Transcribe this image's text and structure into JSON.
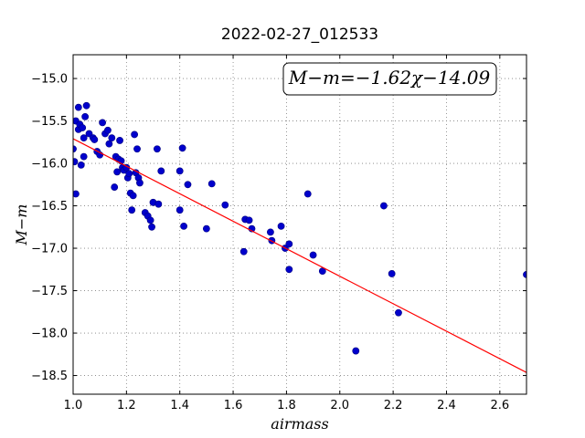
{
  "chart_data": {
    "type": "scatter",
    "title": "2022-02-27_012533",
    "xlabel": "airmass",
    "ylabel": "M−m",
    "xlim": [
      1.0,
      2.7
    ],
    "ylim": [
      -18.72,
      -14.72
    ],
    "xticks": [
      1.0,
      1.2,
      1.4,
      1.6,
      1.8,
      2.0,
      2.2,
      2.4,
      2.6
    ],
    "xtick_labels": [
      "1.0",
      "1.2",
      "1.4",
      "1.6",
      "1.8",
      "2.0",
      "2.2",
      "2.4",
      "2.6"
    ],
    "yticks": [
      -15.0,
      -15.5,
      -16.0,
      -16.5,
      -17.0,
      -17.5,
      -18.0,
      -18.5
    ],
    "ytick_labels": [
      "−15.0",
      "−15.5",
      "−16.0",
      "−16.5",
      "−17.0",
      "−17.5",
      "−18.0",
      "−18.5"
    ],
    "grid": true,
    "annotation": "M−m=−1.62χ−14.09",
    "marker_color": "#0000cc",
    "fit_color": "#ff0000",
    "fit": {
      "slope": -1.62,
      "intercept": -14.09
    },
    "points": [
      [
        1.0,
        -15.83
      ],
      [
        1.005,
        -15.98
      ],
      [
        1.01,
        -15.5
      ],
      [
        1.01,
        -16.36
      ],
      [
        1.02,
        -15.6
      ],
      [
        1.02,
        -15.34
      ],
      [
        1.025,
        -15.54
      ],
      [
        1.03,
        -16.02
      ],
      [
        1.035,
        -15.58
      ],
      [
        1.04,
        -15.7
      ],
      [
        1.04,
        -15.92
      ],
      [
        1.045,
        -15.45
      ],
      [
        1.05,
        -15.32
      ],
      [
        1.06,
        -15.65
      ],
      [
        1.075,
        -15.7
      ],
      [
        1.08,
        -15.72
      ],
      [
        1.09,
        -15.86
      ],
      [
        1.1,
        -15.9
      ],
      [
        1.11,
        -15.52
      ],
      [
        1.12,
        -15.65
      ],
      [
        1.13,
        -15.61
      ],
      [
        1.135,
        -15.77
      ],
      [
        1.145,
        -15.7
      ],
      [
        1.155,
        -16.28
      ],
      [
        1.16,
        -15.92
      ],
      [
        1.165,
        -16.1
      ],
      [
        1.17,
        -15.95
      ],
      [
        1.175,
        -15.73
      ],
      [
        1.18,
        -15.97
      ],
      [
        1.185,
        -16.05
      ],
      [
        1.19,
        -16.08
      ],
      [
        1.2,
        -16.05
      ],
      [
        1.205,
        -16.17
      ],
      [
        1.21,
        -16.12
      ],
      [
        1.215,
        -16.35
      ],
      [
        1.22,
        -16.55
      ],
      [
        1.225,
        -16.38
      ],
      [
        1.23,
        -15.66
      ],
      [
        1.235,
        -16.11
      ],
      [
        1.24,
        -15.83
      ],
      [
        1.245,
        -16.17
      ],
      [
        1.25,
        -16.23
      ],
      [
        1.27,
        -16.58
      ],
      [
        1.28,
        -16.62
      ],
      [
        1.29,
        -16.67
      ],
      [
        1.295,
        -16.75
      ],
      [
        1.3,
        -16.46
      ],
      [
        1.315,
        -15.83
      ],
      [
        1.32,
        -16.48
      ],
      [
        1.33,
        -16.09
      ],
      [
        1.4,
        -16.09
      ],
      [
        1.4,
        -16.55
      ],
      [
        1.41,
        -15.82
      ],
      [
        1.415,
        -16.74
      ],
      [
        1.43,
        -16.25
      ],
      [
        1.5,
        -16.77
      ],
      [
        1.52,
        -16.24
      ],
      [
        1.57,
        -16.49
      ],
      [
        1.64,
        -17.04
      ],
      [
        1.645,
        -16.66
      ],
      [
        1.66,
        -16.67
      ],
      [
        1.67,
        -16.77
      ],
      [
        1.74,
        -16.81
      ],
      [
        1.745,
        -16.91
      ],
      [
        1.78,
        -16.74
      ],
      [
        1.795,
        -17.0
      ],
      [
        1.81,
        -16.95
      ],
      [
        1.81,
        -17.25
      ],
      [
        1.88,
        -16.36
      ],
      [
        1.9,
        -17.08
      ],
      [
        1.935,
        -17.27
      ],
      [
        2.06,
        -18.21
      ],
      [
        2.165,
        -16.5
      ],
      [
        2.195,
        -17.3
      ],
      [
        2.22,
        -17.76
      ],
      [
        2.7,
        -17.31
      ]
    ]
  }
}
